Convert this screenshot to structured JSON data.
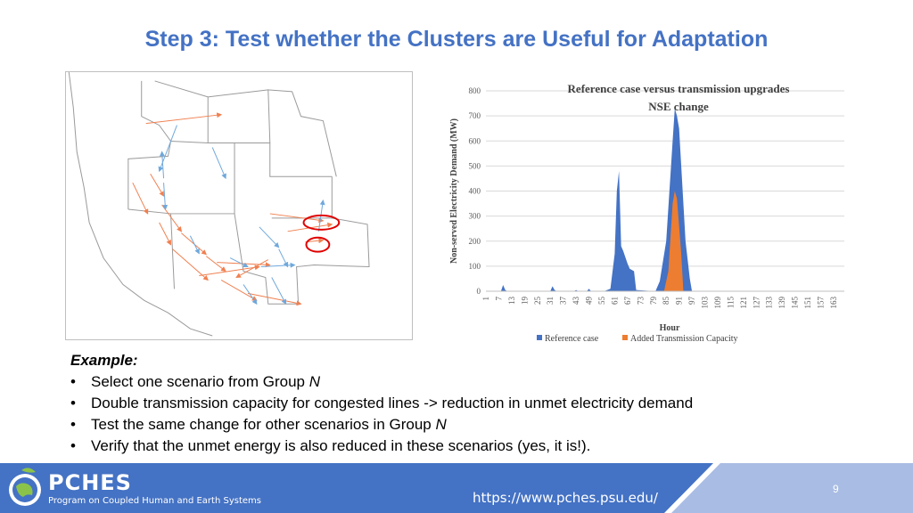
{
  "slide": {
    "title": "Step 3: Test whether the Clusters are Useful for Adaptation",
    "page_number": "9"
  },
  "example": {
    "heading": "Example:",
    "bullets": [
      {
        "text": "Select one scenario from Group ",
        "italic": "N",
        "tail": ""
      },
      {
        "text": "Double transmission capacity for congested lines -> reduction in unmet electricity demand",
        "italic": "",
        "tail": ""
      },
      {
        "text": "Test the same change for other scenarios in Group ",
        "italic": "N",
        "tail": ""
      },
      {
        "text": "Verify that the unmet energy is also reduced in these scenarios (yes, it is!).",
        "italic": "",
        "tail": ""
      }
    ]
  },
  "footer": {
    "logo": "PCHES",
    "logo_subtitle": "Program on Coupled Human and Earth Systems",
    "url": "https://www.pches.psu.edu/"
  },
  "colors": {
    "title": "#4472C4",
    "series_reference": "#4472C4",
    "series_added": "#ED7D31",
    "footer_bar": "#4472C4",
    "highlight_circle": "#E00000"
  },
  "chart_data": {
    "type": "area",
    "title": "Reference case versus transmission upgrades",
    "subtitle": "NSE change",
    "xlabel": "Hour",
    "ylabel": "Non-served Electricity Demand (MW)",
    "ylim": [
      0,
      800
    ],
    "yticks": [
      "0",
      "100",
      "200",
      "300",
      "400",
      "500",
      "600",
      "700",
      "800"
    ],
    "xlim": [
      1,
      168
    ],
    "xticks": [
      "1",
      "7",
      "13",
      "19",
      "25",
      "31",
      "37",
      "43",
      "49",
      "55",
      "61",
      "67",
      "73",
      "79",
      "85",
      "91",
      "97",
      "103",
      "109",
      "115",
      "121",
      "127",
      "133",
      "139",
      "145",
      "151",
      "157",
      "163"
    ],
    "grid": true,
    "legend": "bottom",
    "series": [
      {
        "name": "Reference case",
        "x": [
          1,
          8,
          9,
          10,
          11,
          31,
          32,
          33,
          34,
          42,
          43,
          44,
          48,
          49,
          50,
          56,
          59,
          61,
          62,
          63,
          64,
          65,
          67,
          68,
          70,
          71,
          80,
          82,
          85,
          88,
          89,
          90,
          91,
          92,
          94,
          96,
          97,
          168
        ],
        "y": [
          0,
          0,
          25,
          5,
          0,
          0,
          20,
          5,
          0,
          0,
          5,
          0,
          0,
          10,
          0,
          0,
          10,
          150,
          400,
          480,
          180,
          160,
          110,
          90,
          80,
          5,
          0,
          40,
          200,
          600,
          730,
          700,
          650,
          500,
          200,
          50,
          0,
          0
        ]
      },
      {
        "name": "Added Transmission Capacity",
        "x": [
          1,
          84,
          86,
          88,
          89,
          90,
          92,
          93,
          168
        ],
        "y": [
          0,
          0,
          80,
          350,
          400,
          370,
          150,
          0,
          0
        ]
      }
    ]
  }
}
